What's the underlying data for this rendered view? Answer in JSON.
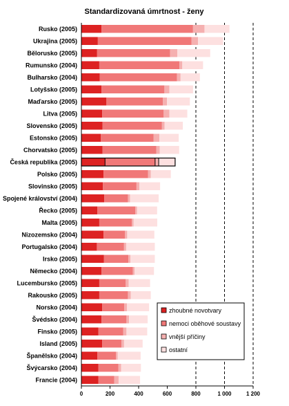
{
  "chart_data": {
    "type": "bar",
    "orientation": "horizontal",
    "stacked": true,
    "title": "Standardizovaná úmrtnost - ženy",
    "categories": [
      "Rusko (2005)",
      "Ukrajina (2005)",
      "Bělorusko (2005)",
      "Rumunsko (2004)",
      "Bulharsko (2004)",
      "Lotyšsko (2005)",
      "Maďarsko (2005)",
      "Litva (2005)",
      "Slovensko (2005)",
      "Estonsko (2005)",
      "Chorvatsko (2005)",
      "Česká republika (2005)",
      "Polsko (2005)",
      "Slovinsko (2005)",
      "Spojené království (2004)",
      "Řecko (2005)",
      "Malta (2005)",
      "Nizozemsko (2004)",
      "Portugalsko (2004)",
      "Irsko (2005)",
      "Německo (2004)",
      "Lucembursko (2005)",
      "Rakousko (2005)",
      "Norsko (2004)",
      "Švédsko (2004)",
      "Finsko (2005)",
      "Island (2005)",
      "Španělsko (2004)",
      "Švýcarsko (2004)",
      "Francie (2004)"
    ],
    "highlighted_category": "Česká republika (2005)",
    "series": [
      {
        "name": "zhoubné novotvary",
        "color": "#dd2222",
        "values": [
          140,
          115,
          110,
          125,
          128,
          140,
          175,
          145,
          148,
          135,
          148,
          165,
          155,
          150,
          160,
          112,
          125,
          155,
          108,
          158,
          140,
          125,
          125,
          145,
          140,
          118,
          145,
          112,
          118,
          118
        ]
      },
      {
        "name": "nemoci oběhové soustavy",
        "color": "#f07878",
        "values": [
          640,
          655,
          510,
          560,
          540,
          440,
          395,
          430,
          415,
          370,
          375,
          350,
          310,
          235,
          165,
          265,
          228,
          150,
          190,
          170,
          220,
          185,
          200,
          155,
          175,
          175,
          135,
          130,
          140,
          112
        ]
      },
      {
        "name": "vnější příčiny",
        "color": "#f5b0b0",
        "values": [
          80,
          45,
          50,
          20,
          25,
          35,
          28,
          40,
          18,
          40,
          25,
          25,
          20,
          20,
          15,
          12,
          12,
          15,
          15,
          15,
          12,
          20,
          20,
          18,
          18,
          22,
          18,
          12,
          20,
          30
        ]
      },
      {
        "name": "ostatní",
        "color": "#fde0e0",
        "values": [
          175,
          175,
          230,
          145,
          135,
          165,
          160,
          125,
          128,
          135,
          135,
          115,
          140,
          145,
          200,
          140,
          165,
          190,
          200,
          170,
          135,
          150,
          140,
          155,
          130,
          145,
          130,
          160,
          138,
          150
        ]
      }
    ],
    "xlim": [
      0,
      1200
    ],
    "xticks": [
      "0",
      "200",
      "400",
      "600",
      "800",
      "1 000",
      "1 200"
    ],
    "reference_lines": [
      800,
      1000,
      1200
    ],
    "legend_position": "bottom-right",
    "grid": false
  }
}
